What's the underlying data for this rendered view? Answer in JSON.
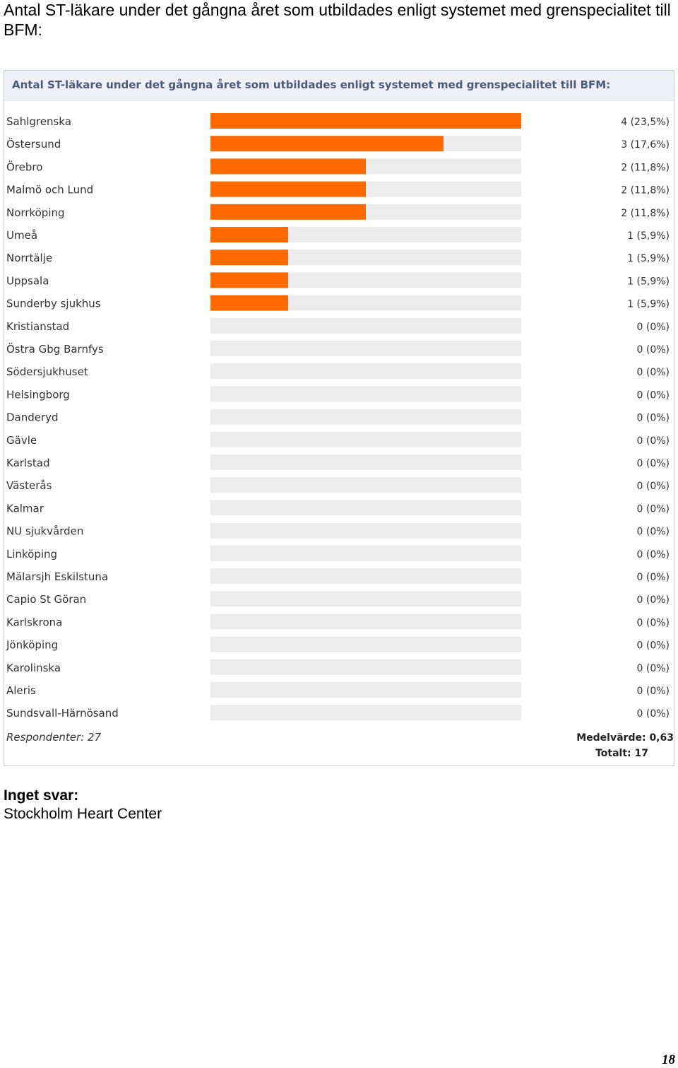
{
  "page": {
    "heading": "Antal ST-läkare under det gångna året som utbildades enligt systemet med grenspecialitet till BFM:",
    "no_answer_heading": "Inget svar:",
    "no_answer_text": "Stockholm Heart Center",
    "page_number": "18"
  },
  "colors": {
    "bar": "#ff6a00",
    "track": "#ececec",
    "header_bg": "#eef0f5",
    "title": "#4b5a78"
  },
  "chart_data": {
    "type": "bar",
    "orientation": "horizontal",
    "title": "Antal ST-läkare under det gångna året som utbildades enligt systemet med grenspecialitet till BFM:",
    "max_value": 4,
    "categories": [
      "Sahlgrenska",
      "Östersund",
      "Örebro",
      "Malmö och Lund",
      "Norrköping",
      "Umeå",
      "Norrtälje",
      "Uppsala",
      "Sunderby sjukhus",
      "Kristianstad",
      "Östra Gbg Barnfys",
      "Södersjukhuset",
      "Helsingborg",
      "Danderyd",
      "Gävle",
      "Karlstad",
      "Västerås",
      "Kalmar",
      "NU sjukvården",
      "Linköping",
      "Mälarsjh Eskilstuna",
      "Capio St Göran",
      "Karlskrona",
      "Jönköping",
      "Karolinska",
      "Aleris",
      "Sundsvall-Härnösand"
    ],
    "values": [
      4,
      3,
      2,
      2,
      2,
      1,
      1,
      1,
      1,
      0,
      0,
      0,
      0,
      0,
      0,
      0,
      0,
      0,
      0,
      0,
      0,
      0,
      0,
      0,
      0,
      0,
      0
    ],
    "value_labels": [
      "4 (23,5%)",
      "3 (17,6%)",
      "2 (11,8%)",
      "2 (11,8%)",
      "2 (11,8%)",
      "1 (5,9%)",
      "1 (5,9%)",
      "1 (5,9%)",
      "1 (5,9%)",
      "0 (0%)",
      "0 (0%)",
      "0 (0%)",
      "0 (0%)",
      "0 (0%)",
      "0 (0%)",
      "0 (0%)",
      "0 (0%)",
      "0 (0%)",
      "0 (0%)",
      "0 (0%)",
      "0 (0%)",
      "0 (0%)",
      "0 (0%)",
      "0 (0%)",
      "0 (0%)",
      "0 (0%)",
      "0 (0%)"
    ],
    "respondents_label": "Respondenter: 27",
    "mean_label": "Medelvärde: 0,63",
    "total_label": "Totalt: 17"
  }
}
